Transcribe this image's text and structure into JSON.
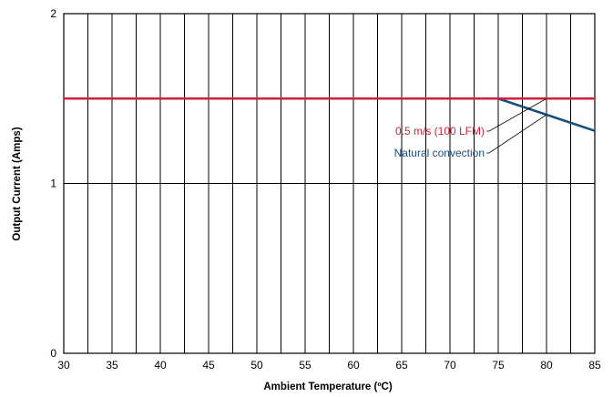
{
  "chart_data": {
    "type": "line",
    "title": "",
    "xlabel": "Ambient Temperature (ºC)",
    "ylabel": "Output Current (Amps)",
    "xlim": [
      30,
      85
    ],
    "ylim": [
      0,
      2
    ],
    "x_ticks": [
      30,
      35,
      40,
      45,
      50,
      55,
      60,
      65,
      70,
      75,
      80,
      85
    ],
    "y_ticks": [
      0,
      1,
      2
    ],
    "grid": "vertical every 2.5 ºC, horizontal at integer amps",
    "legend": "none (series labeled by callout annotations)",
    "series": [
      {
        "name": "0.5 m/s (100 LFM)",
        "color": "#d2203c",
        "points": [
          [
            30,
            1.5
          ],
          [
            85,
            1.5
          ]
        ]
      },
      {
        "name": "Natural convection",
        "color": "#15507f",
        "points": [
          [
            30,
            1.5
          ],
          [
            75,
            1.5
          ],
          [
            85,
            1.31
          ]
        ]
      }
    ]
  }
}
